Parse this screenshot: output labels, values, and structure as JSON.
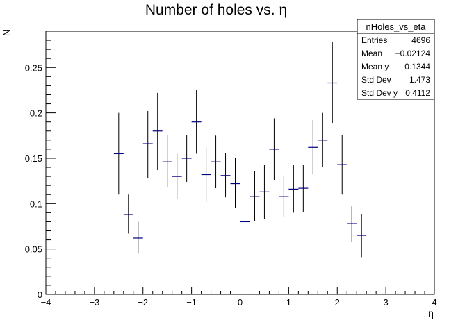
{
  "chart_data": {
    "type": "scatter",
    "style": "profile-error-bars",
    "title": "Number of holes vs. η",
    "xlabel": "η",
    "ylabel": "N",
    "xlim": [
      -4,
      4
    ],
    "ylim": [
      0,
      0.29
    ],
    "x_ticks": [
      -4,
      -3,
      -2,
      -1,
      0,
      1,
      2,
      3,
      4
    ],
    "x_tick_labels": [
      "−4",
      "−3",
      "−2",
      "−1",
      "0",
      "1",
      "2",
      "3",
      "4"
    ],
    "y_ticks": [
      0,
      0.05,
      0.1,
      0.15,
      0.2,
      0.25
    ],
    "y_tick_labels": [
      "0",
      "0.05",
      "0.1",
      "0.15",
      "0.2",
      "0.25"
    ],
    "grid": false,
    "marker_color": "#000080",
    "bin_width": 0.2,
    "points": [
      {
        "x": -2.5,
        "y": 0.155,
        "ylo": 0.11,
        "yhi": 0.2
      },
      {
        "x": -2.3,
        "y": 0.088,
        "ylo": 0.067,
        "yhi": 0.11
      },
      {
        "x": -2.1,
        "y": 0.062,
        "ylo": 0.045,
        "yhi": 0.08
      },
      {
        "x": -1.9,
        "y": 0.166,
        "ylo": 0.128,
        "yhi": 0.202
      },
      {
        "x": -1.7,
        "y": 0.18,
        "ylo": 0.137,
        "yhi": 0.222
      },
      {
        "x": -1.5,
        "y": 0.146,
        "ylo": 0.118,
        "yhi": 0.176
      },
      {
        "x": -1.3,
        "y": 0.13,
        "ylo": 0.105,
        "yhi": 0.155
      },
      {
        "x": -1.1,
        "y": 0.15,
        "ylo": 0.124,
        "yhi": 0.176
      },
      {
        "x": -0.9,
        "y": 0.19,
        "ylo": 0.155,
        "yhi": 0.225
      },
      {
        "x": -0.7,
        "y": 0.132,
        "ylo": 0.102,
        "yhi": 0.162
      },
      {
        "x": -0.5,
        "y": 0.146,
        "ylo": 0.117,
        "yhi": 0.175
      },
      {
        "x": -0.3,
        "y": 0.131,
        "ylo": 0.107,
        "yhi": 0.156
      },
      {
        "x": -0.1,
        "y": 0.122,
        "ylo": 0.095,
        "yhi": 0.15
      },
      {
        "x": 0.1,
        "y": 0.08,
        "ylo": 0.058,
        "yhi": 0.103
      },
      {
        "x": 0.3,
        "y": 0.108,
        "ylo": 0.081,
        "yhi": 0.136
      },
      {
        "x": 0.5,
        "y": 0.113,
        "ylo": 0.083,
        "yhi": 0.143
      },
      {
        "x": 0.7,
        "y": 0.16,
        "ylo": 0.126,
        "yhi": 0.194
      },
      {
        "x": 0.9,
        "y": 0.108,
        "ylo": 0.085,
        "yhi": 0.13
      },
      {
        "x": 1.1,
        "y": 0.116,
        "ylo": 0.09,
        "yhi": 0.143
      },
      {
        "x": 1.3,
        "y": 0.117,
        "ylo": 0.091,
        "yhi": 0.143
      },
      {
        "x": 1.5,
        "y": 0.162,
        "ylo": 0.132,
        "yhi": 0.192
      },
      {
        "x": 1.7,
        "y": 0.17,
        "ylo": 0.14,
        "yhi": 0.2
      },
      {
        "x": 1.9,
        "y": 0.233,
        "ylo": 0.189,
        "yhi": 0.278
      },
      {
        "x": 2.1,
        "y": 0.143,
        "ylo": 0.11,
        "yhi": 0.176
      },
      {
        "x": 2.3,
        "y": 0.078,
        "ylo": 0.058,
        "yhi": 0.097
      },
      {
        "x": 2.5,
        "y": 0.065,
        "ylo": 0.041,
        "yhi": 0.088
      }
    ],
    "stats_box": {
      "title": "nHoles_vs_eta",
      "rows": [
        {
          "label": "Entries",
          "value": "4696"
        },
        {
          "label": "Mean",
          "value": "−0.02124"
        },
        {
          "label": "Mean y",
          "value": "0.1344"
        },
        {
          "label": "Std Dev",
          "value": "1.473"
        },
        {
          "label": "Std Dev y",
          "value": "0.4112"
        }
      ]
    }
  }
}
